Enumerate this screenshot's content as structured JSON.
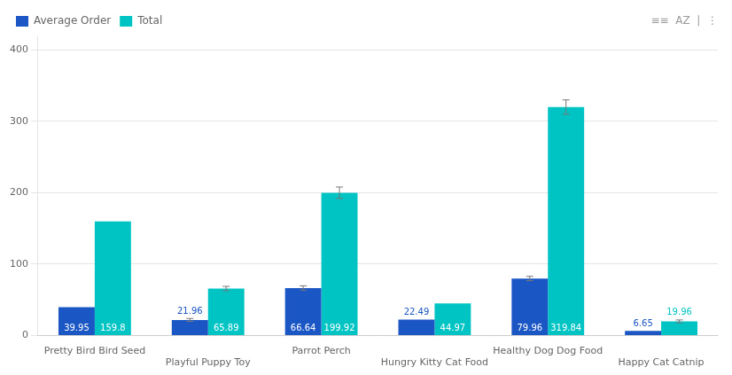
{
  "chart_data": {
    "type": "bar",
    "categories": [
      "Pretty Bird Bird Seed",
      "Playful Puppy Toy",
      "Parrot Perch",
      "Hungry Kitty Cat Food",
      "Healthy Dog Dog Food",
      "Happy Cat Catnip"
    ],
    "series": [
      {
        "name": "Average Order",
        "color": "#1A56C4",
        "values": [
          39.95,
          21.96,
          66.64,
          22.49,
          79.96,
          6.65
        ],
        "errors": [
          0,
          2,
          3,
          0,
          3,
          0
        ]
      },
      {
        "name": "Total",
        "color": "#00C4C4",
        "values": [
          159.8,
          65.89,
          199.92,
          44.97,
          319.84,
          19.96
        ],
        "errors": [
          0,
          3,
          8,
          0,
          10,
          2
        ]
      }
    ],
    "ylim": [
      0,
      420
    ],
    "yticks": [
      0,
      100,
      200,
      300,
      400
    ],
    "grid": true,
    "legend": "upper left",
    "data_labels": true,
    "annotations": [
      "≡≡  AZ  |  ⋮"
    ]
  }
}
